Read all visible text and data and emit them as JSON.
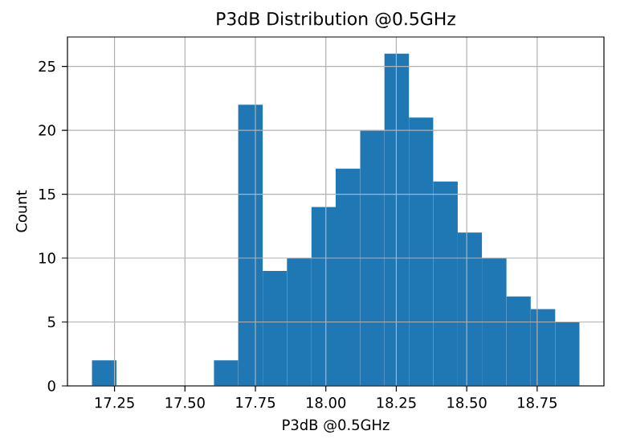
{
  "chart_data": {
    "type": "histogram",
    "title": "P3dB Distribution @0.5GHz",
    "xlabel": "P3dB @0.5GHz",
    "ylabel": "Count",
    "bins": [
      17.17,
      17.257,
      17.343,
      17.43,
      17.516,
      17.603,
      17.689,
      17.776,
      17.862,
      17.949,
      18.035,
      18.122,
      18.208,
      18.295,
      18.381,
      18.468,
      18.554,
      18.641,
      18.727,
      18.814,
      18.9
    ],
    "values": [
      2,
      0,
      0,
      0,
      0,
      2,
      22,
      9,
      10,
      14,
      17,
      20,
      26,
      21,
      16,
      12,
      10,
      7,
      6,
      5
    ],
    "color": "#1f77b4",
    "xlim": [
      17.083,
      18.987
    ],
    "ylim": [
      0,
      27.3
    ],
    "xticks": [
      {
        "value": 17.25,
        "label": "17.25"
      },
      {
        "value": 17.5,
        "label": "17.50"
      },
      {
        "value": 17.75,
        "label": "17.75"
      },
      {
        "value": 18.0,
        "label": "18.00"
      },
      {
        "value": 18.25,
        "label": "18.25"
      },
      {
        "value": 18.5,
        "label": "18.50"
      },
      {
        "value": 18.75,
        "label": "18.75"
      }
    ],
    "yticks": [
      0,
      5,
      10,
      15,
      20,
      25
    ],
    "grid": true
  }
}
